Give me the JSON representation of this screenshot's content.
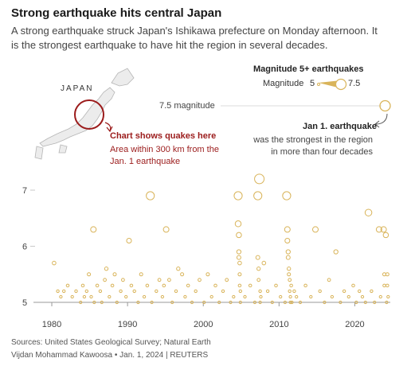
{
  "header": {
    "title": "Strong earthquake hits central Japan",
    "subtitle": "A strong earthquake struck Japan's Ishikawa prefecture on Monday afternoon. It is the strongest earthquake to have hit the region in several decades."
  },
  "map": {
    "country_label": "JAPAN",
    "note_title": "Chart shows quakes here",
    "note_body": "Area within 300 km from the Jan. 1 earthquake"
  },
  "legend": {
    "title": "Magnitude 5+ earthquakes",
    "label": "Magnitude",
    "min": "5",
    "max": "7.5"
  },
  "annotation": {
    "mag_label": "7.5 magnitude",
    "title": "Jan 1. earthquake",
    "body": "was the strongest in the region in more than four decades"
  },
  "footer": {
    "source": "Sources: United States Geological Survey; Natural Earth",
    "credit": "Vijdan Mohammad Kawoosa • Jan. 1, 2024 | REUTERS"
  },
  "colors": {
    "marker": "#d9b45a",
    "highlight": "#9b1b1b",
    "axis": "#999999"
  },
  "chart_data": {
    "type": "scatter",
    "xlabel": "",
    "ylabel": "",
    "xlim": [
      1978,
      2025
    ],
    "ylim": [
      5,
      7.7
    ],
    "x_ticks": [
      "1980",
      "1990",
      "2000",
      "2010",
      "2020"
    ],
    "y_ticks": [
      "5",
      "6",
      "7"
    ],
    "grid": false,
    "points": [
      [
        1980.3,
        5.7
      ],
      [
        1980.8,
        5.2
      ],
      [
        1981.2,
        5.1
      ],
      [
        1981.6,
        5.2
      ],
      [
        1982.1,
        5.3
      ],
      [
        1982.7,
        5.1
      ],
      [
        1983.2,
        5.2
      ],
      [
        1983.8,
        5.0
      ],
      [
        1984.1,
        5.3
      ],
      [
        1984.3,
        5.1
      ],
      [
        1984.6,
        5.2
      ],
      [
        1984.9,
        5.5
      ],
      [
        1985.2,
        5.1
      ],
      [
        1985.5,
        6.3
      ],
      [
        1985.6,
        5.0
      ],
      [
        1986.0,
        5.3
      ],
      [
        1986.4,
        5.2
      ],
      [
        1986.6,
        5.0
      ],
      [
        1987.0,
        5.4
      ],
      [
        1987.2,
        5.6
      ],
      [
        1987.6,
        5.1
      ],
      [
        1988.0,
        5.3
      ],
      [
        1988.3,
        5.5
      ],
      [
        1988.6,
        5.0
      ],
      [
        1989.1,
        5.2
      ],
      [
        1989.4,
        5.4
      ],
      [
        1989.8,
        5.1
      ],
      [
        1990.2,
        6.1
      ],
      [
        1990.5,
        5.3
      ],
      [
        1990.9,
        5.2
      ],
      [
        1991.4,
        5.0
      ],
      [
        1991.8,
        5.5
      ],
      [
        1992.2,
        5.1
      ],
      [
        1992.6,
        5.3
      ],
      [
        1993.0,
        6.9
      ],
      [
        1993.2,
        5.0
      ],
      [
        1993.8,
        5.2
      ],
      [
        1994.2,
        5.4
      ],
      [
        1994.6,
        5.1
      ],
      [
        1994.8,
        5.3
      ],
      [
        1995.1,
        6.3
      ],
      [
        1995.5,
        5.4
      ],
      [
        1995.9,
        5.0
      ],
      [
        1996.4,
        5.2
      ],
      [
        1996.7,
        5.6
      ],
      [
        1997.2,
        5.5
      ],
      [
        1997.6,
        5.1
      ],
      [
        1998.0,
        5.3
      ],
      [
        1998.5,
        5.0
      ],
      [
        1999.0,
        5.2
      ],
      [
        1999.5,
        5.4
      ],
      [
        2000.1,
        5.0
      ],
      [
        2000.6,
        5.5
      ],
      [
        2001.1,
        5.1
      ],
      [
        2001.6,
        5.3
      ],
      [
        2002.1,
        5.0
      ],
      [
        2002.6,
        5.2
      ],
      [
        2003.1,
        5.4
      ],
      [
        2003.6,
        5.0
      ],
      [
        2004.0,
        5.1
      ],
      [
        2004.6,
        6.9
      ],
      [
        2004.6,
        6.4
      ],
      [
        2004.7,
        6.2
      ],
      [
        2004.7,
        5.9
      ],
      [
        2004.7,
        5.8
      ],
      [
        2004.8,
        5.7
      ],
      [
        2004.8,
        5.5
      ],
      [
        2004.8,
        5.3
      ],
      [
        2004.9,
        5.2
      ],
      [
        2004.9,
        5.0
      ],
      [
        2005.5,
        5.1
      ],
      [
        2006.2,
        5.3
      ],
      [
        2006.8,
        5.0
      ],
      [
        2007.2,
        6.9
      ],
      [
        2007.2,
        5.8
      ],
      [
        2007.3,
        5.6
      ],
      [
        2007.3,
        5.4
      ],
      [
        2007.4,
        7.2
      ],
      [
        2007.5,
        5.2
      ],
      [
        2007.5,
        5.0
      ],
      [
        2007.6,
        5.1
      ],
      [
        2008.0,
        5.7
      ],
      [
        2008.5,
        5.2
      ],
      [
        2009.1,
        5.0
      ],
      [
        2009.6,
        5.3
      ],
      [
        2010.2,
        5.1
      ],
      [
        2010.8,
        5.0
      ],
      [
        2011.0,
        6.9
      ],
      [
        2011.1,
        6.3
      ],
      [
        2011.1,
        6.1
      ],
      [
        2011.2,
        5.9
      ],
      [
        2011.2,
        5.8
      ],
      [
        2011.3,
        5.6
      ],
      [
        2011.3,
        5.5
      ],
      [
        2011.4,
        5.4
      ],
      [
        2011.4,
        5.2
      ],
      [
        2011.5,
        5.1
      ],
      [
        2011.5,
        5.0
      ],
      [
        2011.6,
        5.3
      ],
      [
        2011.7,
        5.0
      ],
      [
        2012.0,
        5.2
      ],
      [
        2012.3,
        5.1
      ],
      [
        2012.8,
        5.0
      ],
      [
        2013.5,
        5.3
      ],
      [
        2014.2,
        5.1
      ],
      [
        2014.8,
        6.3
      ],
      [
        2015.4,
        5.2
      ],
      [
        2016.0,
        5.0
      ],
      [
        2016.6,
        5.4
      ],
      [
        2017.0,
        5.1
      ],
      [
        2017.5,
        5.9
      ],
      [
        2018.1,
        5.0
      ],
      [
        2018.6,
        5.2
      ],
      [
        2019.2,
        5.1
      ],
      [
        2019.8,
        5.3
      ],
      [
        2020.2,
        5.0
      ],
      [
        2020.6,
        5.2
      ],
      [
        2021.0,
        5.1
      ],
      [
        2021.4,
        5.0
      ],
      [
        2021.8,
        6.6
      ],
      [
        2022.2,
        5.2
      ],
      [
        2022.6,
        5.0
      ],
      [
        2023.2,
        6.3
      ],
      [
        2023.4,
        5.1
      ],
      [
        2023.8,
        6.3
      ],
      [
        2023.9,
        5.5
      ],
      [
        2023.9,
        5.3
      ],
      [
        2024.1,
        6.2
      ],
      [
        2024.2,
        5.0
      ],
      [
        2024.3,
        5.5
      ],
      [
        2024.3,
        5.3
      ],
      [
        2024.4,
        5.1
      ],
      [
        2024.0,
        7.5
      ]
    ]
  }
}
